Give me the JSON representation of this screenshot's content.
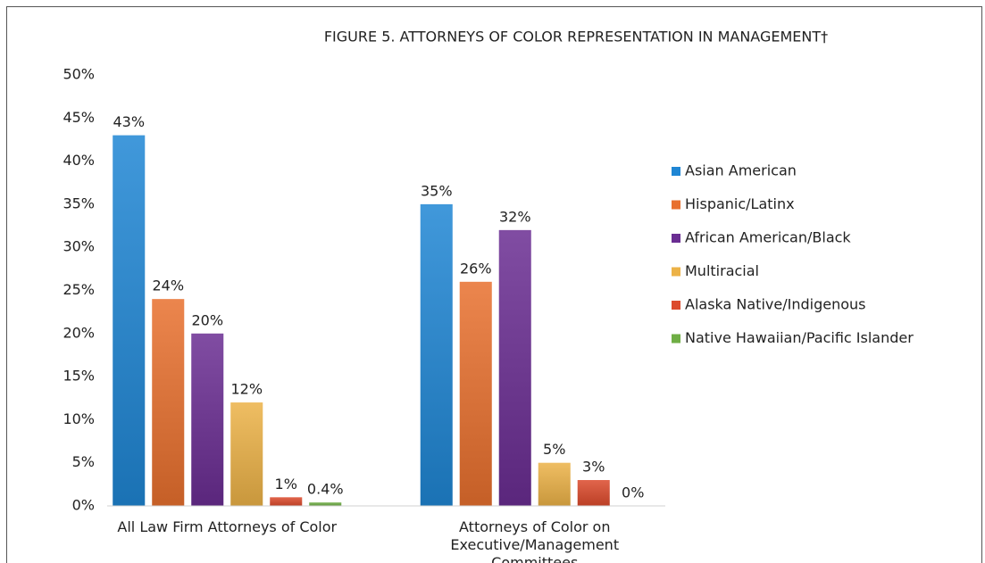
{
  "chart_data": {
    "type": "bar",
    "title": "FIGURE 5. ATTORNEYS OF COLOR REPRESENTATION IN MANAGEMENT†",
    "categories": [
      "All Law Firm Attorneys of Color",
      "Attorneys of Color on Executive/Management Committees"
    ],
    "series": [
      {
        "name": "Asian American",
        "color": "#1f86d4",
        "values": [
          43,
          35
        ],
        "value_labels": [
          "43%",
          "35%"
        ]
      },
      {
        "name": "Hispanic/Latinx",
        "color": "#e8702e",
        "values": [
          24,
          26
        ],
        "value_labels": [
          "24%",
          "26%"
        ]
      },
      {
        "name": "African American/Black",
        "color": "#6a2d92",
        "values": [
          20,
          32
        ],
        "value_labels": [
          "20%",
          "32%"
        ]
      },
      {
        "name": "Multiracial",
        "color": "#ecb247",
        "values": [
          12,
          5
        ],
        "value_labels": [
          "12%",
          "5%"
        ]
      },
      {
        "name": "Alaska Native/Indigenous",
        "color": "#dc4a2c",
        "values": [
          1,
          3
        ],
        "value_labels": [
          "1%",
          "3%"
        ]
      },
      {
        "name": "Native Hawaiian/Pacific Islander",
        "color": "#6fae45",
        "values": [
          0.4,
          0
        ],
        "value_labels": [
          "0.4%",
          "0%"
        ]
      }
    ],
    "ylim": [
      0,
      50
    ],
    "yticks": [
      {
        "value": 0,
        "label": "0%"
      },
      {
        "value": 5,
        "label": "5%"
      },
      {
        "value": 10,
        "label": "10%"
      },
      {
        "value": 15,
        "label": "15%"
      },
      {
        "value": 20,
        "label": "20%"
      },
      {
        "value": 25,
        "label": "25%"
      },
      {
        "value": 30,
        "label": "30%"
      },
      {
        "value": 35,
        "label": "35%"
      },
      {
        "value": 40,
        "label": "40%"
      },
      {
        "value": 45,
        "label": "45%"
      },
      {
        "value": 50,
        "label": "50%"
      }
    ],
    "grid": false,
    "legend": "right"
  }
}
